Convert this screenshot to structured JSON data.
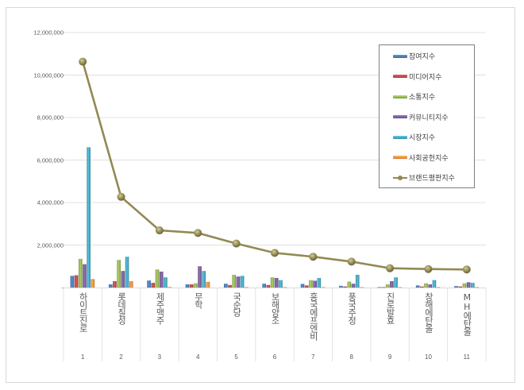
{
  "chart_data": {
    "type": "bar",
    "title": "",
    "xlabel": "",
    "ylabel": "",
    "ylim": [
      0,
      12000000
    ],
    "yticks": [
      "-",
      "2,000,000",
      "4,000,000",
      "6,000,000",
      "8,000,000",
      "10,000,000",
      "12,000,000"
    ],
    "grid": true,
    "legend_position": "upper right (inside)",
    "categories": [
      "하이트진로",
      "롯데칠성",
      "제주맥주",
      "무학",
      "국순당",
      "보해양조",
      "흥국에프엔비",
      "풍국주정",
      "진로발효",
      "창해에탄올",
      "MH에탄올"
    ],
    "category_numbers": [
      "1",
      "2",
      "3",
      "4",
      "5",
      "6",
      "7",
      "8",
      "9",
      "10",
      "11"
    ],
    "series": [
      {
        "name": "참여지수",
        "type": "bar",
        "color": "#4f81bd",
        "values": [
          550000,
          150000,
          330000,
          150000,
          180000,
          180000,
          170000,
          80000,
          20000,
          100000,
          70000
        ]
      },
      {
        "name": "미디어지수",
        "type": "bar",
        "color": "#c0504d",
        "values": [
          580000,
          300000,
          220000,
          150000,
          120000,
          120000,
          100000,
          50000,
          20000,
          50000,
          50000
        ]
      },
      {
        "name": "소통지수",
        "type": "bar",
        "color": "#9bbb59",
        "values": [
          1350000,
          1300000,
          850000,
          200000,
          600000,
          480000,
          350000,
          280000,
          150000,
          200000,
          200000
        ]
      },
      {
        "name": "커뮤니티지수",
        "type": "bar",
        "color": "#8064a2",
        "values": [
          1100000,
          780000,
          750000,
          1000000,
          520000,
          450000,
          320000,
          180000,
          300000,
          150000,
          250000
        ]
      },
      {
        "name": "시장지수",
        "type": "bar",
        "color": "#4bacc6",
        "values": [
          6600000,
          1450000,
          480000,
          780000,
          550000,
          350000,
          450000,
          600000,
          480000,
          350000,
          220000
        ]
      },
      {
        "name": "사회공헌지수",
        "type": "bar",
        "color": "#f79646",
        "values": [
          400000,
          300000,
          30000,
          270000,
          20000,
          20000,
          20000,
          20000,
          20000,
          20000,
          20000
        ]
      },
      {
        "name": "브랜드평판지수",
        "type": "line",
        "color": "#938953",
        "values": [
          10630000,
          4270000,
          2690000,
          2570000,
          2070000,
          1630000,
          1450000,
          1220000,
          910000,
          870000,
          850000
        ]
      }
    ]
  }
}
